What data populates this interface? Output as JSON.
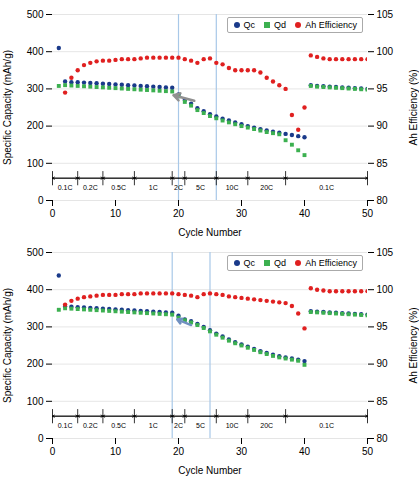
{
  "chart_data": [
    {
      "type": "scatter",
      "xlabel": "Cycle Number",
      "ylabel": "Specific Capacity (mAh/g)",
      "y2label": "Ah Efficiency (%)",
      "xlim": [
        0,
        50
      ],
      "xticks": [
        0,
        10,
        20,
        30,
        40,
        50
      ],
      "ylim": [
        0,
        500
      ],
      "yticks": [
        0,
        100,
        200,
        300,
        400,
        500
      ],
      "y2lim": [
        80,
        105
      ],
      "y2ticks": [
        80,
        85,
        90,
        95,
        100,
        105
      ],
      "grid": true,
      "legend": "upper right",
      "series": [
        {
          "name": "Qc",
          "color": "#1a3a8a",
          "marker": "circle",
          "x": [
            1,
            2,
            3,
            4,
            5,
            6,
            7,
            8,
            9,
            10,
            11,
            12,
            13,
            14,
            15,
            16,
            17,
            18,
            19,
            20,
            21,
            22,
            23,
            24,
            25,
            26,
            27,
            28,
            29,
            30,
            31,
            32,
            33,
            34,
            35,
            36,
            37,
            38,
            39,
            40,
            41,
            42,
            43,
            44,
            45,
            46,
            47,
            48,
            49,
            50
          ],
          "values": [
            410,
            320,
            318,
            318,
            317,
            316,
            315,
            314,
            313,
            312,
            311,
            310,
            309,
            308,
            307,
            306,
            305,
            304,
            303,
            285,
            270,
            260,
            248,
            240,
            232,
            226,
            220,
            215,
            210,
            205,
            200,
            196,
            192,
            188,
            185,
            182,
            179,
            176,
            173,
            170,
            310,
            308,
            307,
            306,
            305,
            304,
            303,
            302,
            301,
            300
          ]
        },
        {
          "name": "Qd",
          "color": "#3cb050",
          "marker": "square",
          "x": [
            1,
            2,
            3,
            4,
            5,
            6,
            7,
            8,
            9,
            10,
            11,
            12,
            13,
            14,
            15,
            16,
            17,
            18,
            19,
            20,
            21,
            22,
            23,
            24,
            25,
            26,
            27,
            28,
            29,
            30,
            31,
            32,
            33,
            34,
            35,
            36,
            37,
            38,
            39,
            40,
            41,
            42,
            43,
            44,
            45,
            46,
            47,
            48,
            49,
            50
          ],
          "values": [
            308,
            310,
            309,
            308,
            307,
            306,
            305,
            304,
            303,
            302,
            301,
            300,
            299,
            298,
            297,
            296,
            295,
            294,
            293,
            280,
            265,
            255,
            243,
            235,
            227,
            221,
            215,
            210,
            205,
            200,
            196,
            192,
            188,
            184,
            181,
            178,
            162,
            150,
            135,
            122,
            308,
            306,
            305,
            304,
            303,
            302,
            301,
            300,
            299,
            298
          ]
        },
        {
          "name": "Ah Efficiency",
          "color": "#e02020",
          "marker": "circle",
          "axis": "y2",
          "x": [
            2,
            3,
            4,
            5,
            6,
            7,
            8,
            9,
            10,
            11,
            12,
            13,
            14,
            15,
            16,
            17,
            18,
            19,
            20,
            21,
            22,
            23,
            24,
            25,
            26,
            27,
            28,
            29,
            30,
            31,
            32,
            33,
            34,
            35,
            36,
            37,
            38,
            39,
            40,
            41,
            42,
            43,
            44,
            45,
            46,
            47,
            48,
            49,
            50
          ],
          "values": [
            94.5,
            96.5,
            97.5,
            98.2,
            98.5,
            98.7,
            98.8,
            98.8,
            98.9,
            99.0,
            99.0,
            99.0,
            99.1,
            99.2,
            99.2,
            99.2,
            99.2,
            99.2,
            99.2,
            99.0,
            98.8,
            98.5,
            99.0,
            99.1,
            98.5,
            98.3,
            97.8,
            97.5,
            97.5,
            97.5,
            97.5,
            97.2,
            96.5,
            96.0,
            95.5,
            95.0,
            91.5,
            89.5,
            92.5,
            99.5,
            99.3,
            99.1,
            99.0,
            99.0,
            99.0,
            99.0,
            99.0,
            99.0,
            99.0
          ]
        }
      ],
      "vlines": {
        "x": [
          20,
          26
        ],
        "color": "#a8c8e8"
      },
      "arrow": {
        "from": [
          22.5,
          268
        ],
        "to": [
          19.2,
          283
        ],
        "color": "#909090"
      },
      "brackets": {
        "boundaries": [
          0,
          4,
          8,
          13,
          19,
          21,
          26,
          31,
          37,
          50
        ],
        "labels": [
          "0.1C",
          "0.2C",
          "0.5C",
          "1C",
          "2C",
          "5C",
          "10C",
          "20C",
          "0.1C"
        ],
        "y": 60,
        "label_y": 35
      }
    },
    {
      "type": "scatter",
      "xlabel": "Cycle Number",
      "ylabel": "Specific Capacity (mAh/g)",
      "y2label": "Ah Efficiency (%)",
      "xlim": [
        0,
        50
      ],
      "xticks": [
        0,
        10,
        20,
        30,
        40,
        50
      ],
      "ylim": [
        0,
        500
      ],
      "yticks": [
        0,
        100,
        200,
        300,
        400,
        500
      ],
      "y2lim": [
        80,
        105
      ],
      "y2ticks": [
        80,
        85,
        90,
        95,
        100,
        105
      ],
      "grid": true,
      "legend": "upper right",
      "series": [
        {
          "name": "Qc",
          "color": "#1a3a8a",
          "marker": "circle",
          "x": [
            1,
            2,
            3,
            4,
            5,
            6,
            7,
            8,
            9,
            10,
            11,
            12,
            13,
            14,
            15,
            16,
            17,
            18,
            19,
            20,
            21,
            22,
            23,
            24,
            25,
            26,
            27,
            28,
            29,
            30,
            31,
            32,
            33,
            34,
            35,
            36,
            37,
            38,
            39,
            40,
            41,
            42,
            43,
            44,
            45,
            46,
            47,
            48,
            49,
            50
          ],
          "values": [
            438,
            355,
            354,
            353,
            352,
            351,
            350,
            349,
            348,
            347,
            346,
            345,
            344,
            343,
            342,
            341,
            340,
            339,
            338,
            330,
            320,
            315,
            308,
            300,
            291,
            282,
            274,
            266,
            259,
            253,
            247,
            241,
            235,
            230,
            225,
            221,
            218,
            215,
            212,
            208,
            342,
            341,
            340,
            339,
            338,
            337,
            336,
            335,
            334,
            333
          ]
        },
        {
          "name": "Qd",
          "color": "#3cb050",
          "marker": "square",
          "x": [
            1,
            2,
            3,
            4,
            5,
            6,
            7,
            8,
            9,
            10,
            11,
            12,
            13,
            14,
            15,
            16,
            17,
            18,
            19,
            20,
            21,
            22,
            23,
            24,
            25,
            26,
            27,
            28,
            29,
            30,
            31,
            32,
            33,
            34,
            35,
            36,
            37,
            38,
            39,
            40,
            41,
            42,
            43,
            44,
            45,
            46,
            47,
            48,
            49,
            50
          ],
          "values": [
            346,
            350,
            349,
            348,
            347,
            346,
            345,
            344,
            343,
            342,
            341,
            340,
            339,
            338,
            337,
            336,
            335,
            334,
            333,
            325,
            318,
            312,
            305,
            297,
            288,
            279,
            271,
            263,
            256,
            250,
            244,
            238,
            232,
            227,
            222,
            218,
            215,
            212,
            209,
            198,
            340,
            339,
            338,
            337,
            336,
            335,
            334,
            333,
            332,
            331
          ]
        },
        {
          "name": "Ah Efficiency",
          "color": "#e02020",
          "marker": "circle",
          "axis": "y2",
          "x": [
            2,
            3,
            4,
            5,
            6,
            7,
            8,
            9,
            10,
            11,
            12,
            13,
            14,
            15,
            16,
            17,
            18,
            19,
            20,
            21,
            22,
            23,
            24,
            25,
            26,
            27,
            28,
            29,
            30,
            31,
            32,
            33,
            34,
            35,
            36,
            37,
            38,
            39,
            40,
            41,
            42,
            43,
            44,
            45,
            46,
            47,
            48,
            49,
            50
          ],
          "values": [
            98.0,
            98.5,
            98.8,
            99.0,
            99.1,
            99.2,
            99.3,
            99.3,
            99.3,
            99.4,
            99.4,
            99.4,
            99.5,
            99.5,
            99.5,
            99.5,
            99.5,
            99.5,
            99.4,
            99.3,
            99.2,
            99.0,
            99.4,
            99.5,
            99.4,
            99.3,
            99.1,
            99.0,
            98.9,
            98.8,
            98.7,
            98.6,
            98.5,
            98.4,
            98.3,
            98.2,
            97.8,
            96.8,
            94.8,
            100.2,
            100.0,
            99.9,
            99.8,
            99.8,
            99.8,
            99.8,
            99.8,
            99.8,
            99.8
          ]
        }
      ],
      "vlines": {
        "x": [
          19,
          25
        ],
        "color": "#a8c8e8"
      },
      "arrow": {
        "from": [
          22.0,
          305
        ],
        "to": [
          19.8,
          320
        ],
        "color": "#7090c0"
      },
      "brackets": {
        "boundaries": [
          0,
          4,
          8,
          13,
          19,
          21,
          26,
          31,
          37,
          50
        ],
        "labels": [
          "0.1C",
          "0.2C",
          "0.5C",
          "1C",
          "2C",
          "5C",
          "10C",
          "20C",
          "0.1C"
        ],
        "y": 60,
        "label_y": 35
      }
    }
  ]
}
